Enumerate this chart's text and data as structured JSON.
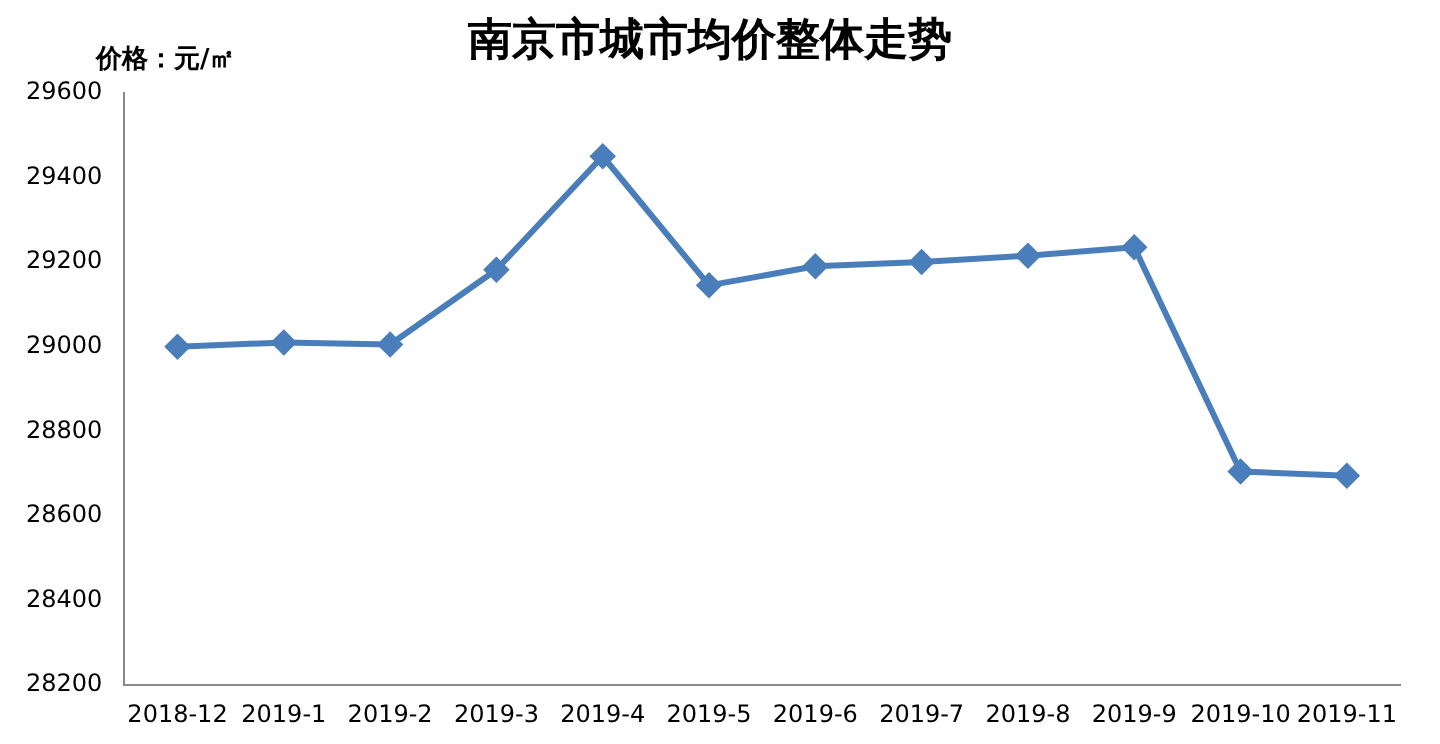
{
  "chart_data": {
    "type": "line",
    "title": "南京市城市均价整体走势",
    "ylabel": "价格：元/㎡",
    "categories": [
      "2018-12",
      "2019-1",
      "2019-2",
      "2019-3",
      "2019-4",
      "2019-5",
      "2019-6",
      "2019-7",
      "2019-8",
      "2019-9",
      "2019-10",
      "2019-11"
    ],
    "series": [
      {
        "color": "#4a7ebb",
        "values": [
          29000,
          29010,
          29005,
          29182,
          29450,
          29145,
          29190,
          29200,
          29215,
          29235,
          28705,
          28695
        ]
      }
    ],
    "ylim": [
      28200,
      29600
    ],
    "yticks": [
      28200,
      28400,
      28600,
      28800,
      29000,
      29200,
      29400,
      29600
    ],
    "grid": false,
    "legend": false,
    "marker": "diamond",
    "line_style": "solid"
  }
}
